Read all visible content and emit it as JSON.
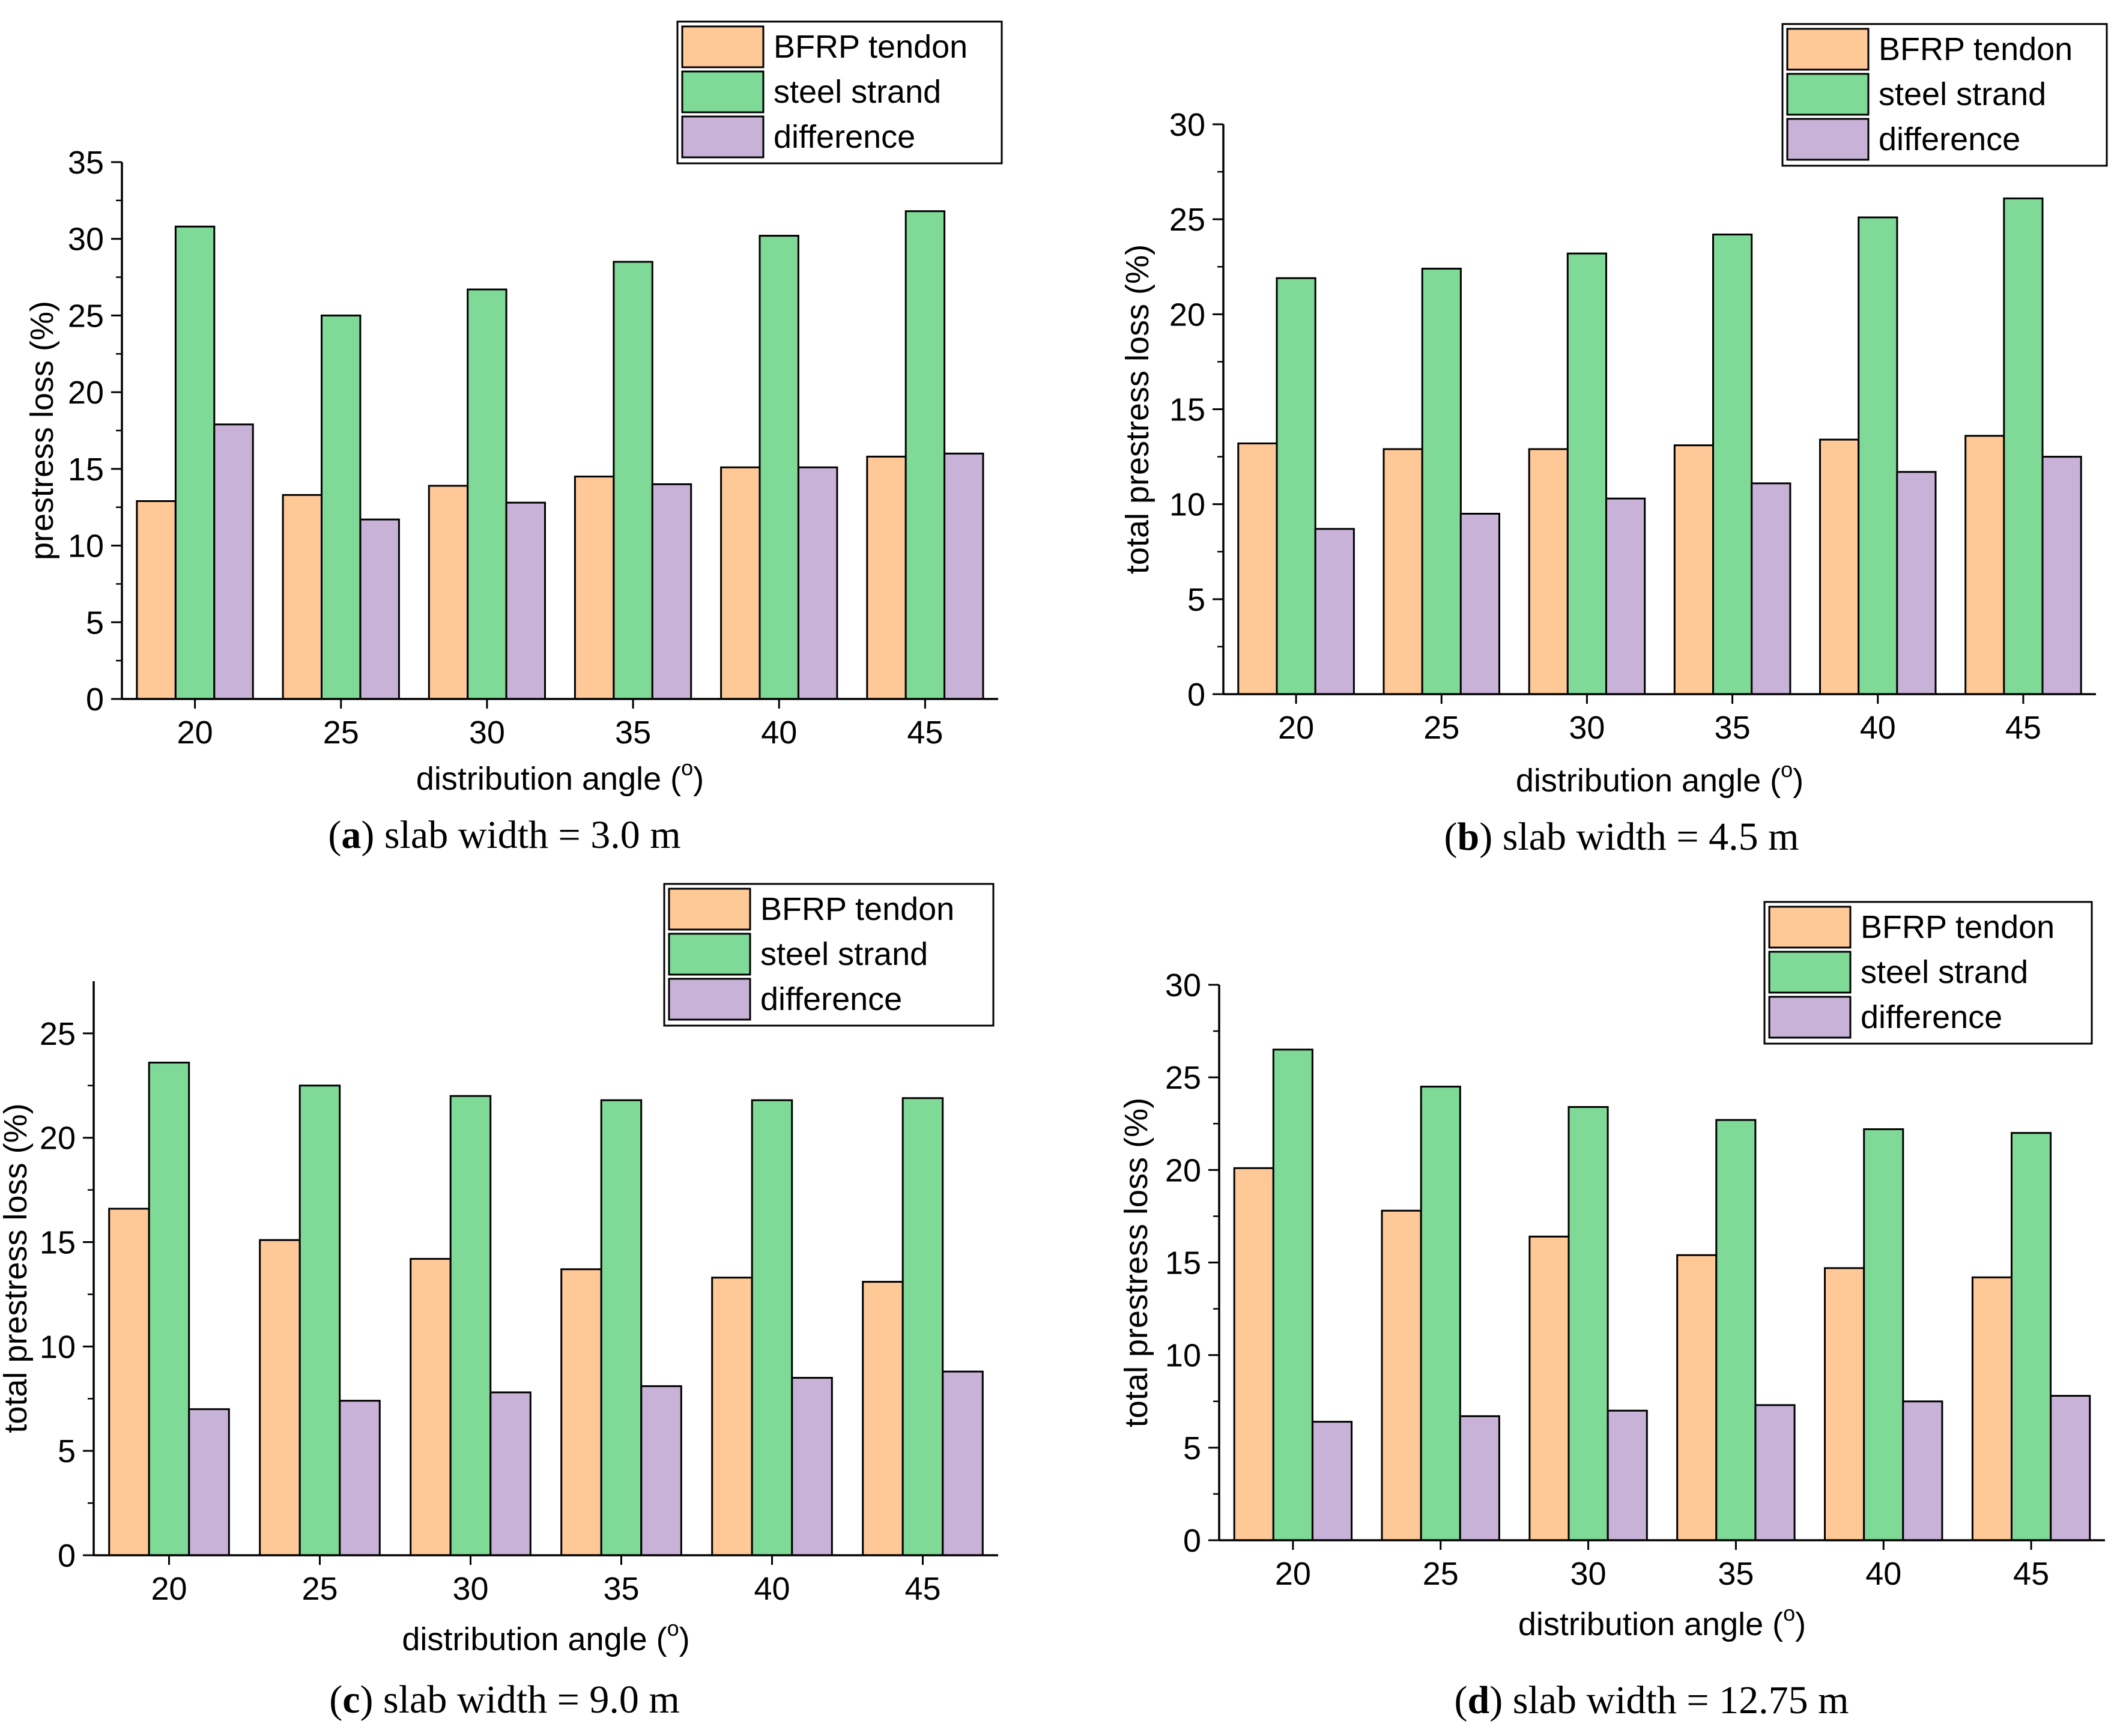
{
  "colors": {
    "bfrp": "#FEC897",
    "steel": "#7FD997",
    "difference": "#C8B2D8",
    "axis": "#000000"
  },
  "chart_data": [
    {
      "type": "bar",
      "panel": "a",
      "caption_label": "a",
      "caption_text": " slab width = 3.0 m",
      "categories": [
        "20",
        "25",
        "30",
        "35",
        "40",
        "45"
      ],
      "series": [
        {
          "name": "BFRP tendon",
          "values": [
            12.9,
            13.3,
            13.9,
            14.5,
            15.1,
            15.8
          ]
        },
        {
          "name": "steel strand",
          "values": [
            30.8,
            25.0,
            26.7,
            28.5,
            30.2,
            31.8
          ]
        },
        {
          "name": "difference",
          "values": [
            17.9,
            11.7,
            12.8,
            14.0,
            15.1,
            16.0
          ]
        }
      ],
      "xlabel_main": "distribution angle (",
      "xlabel_sup": "o",
      "xlabel_end": ")",
      "ylabel": "prestress loss (%)",
      "ylim": [
        0,
        35
      ],
      "yticks": [
        "0",
        "5",
        "10",
        "15",
        "20",
        "25",
        "30",
        "35"
      ],
      "legend": "top-right"
    },
    {
      "type": "bar",
      "panel": "b",
      "caption_label": "b",
      "caption_text": " slab width = 4.5 m",
      "categories": [
        "20",
        "25",
        "30",
        "35",
        "40",
        "45"
      ],
      "series": [
        {
          "name": "BFRP tendon",
          "values": [
            13.2,
            12.9,
            12.9,
            13.1,
            13.4,
            13.6
          ]
        },
        {
          "name": "steel strand",
          "values": [
            21.9,
            22.4,
            23.2,
            24.2,
            25.1,
            26.1
          ]
        },
        {
          "name": "difference",
          "values": [
            8.7,
            9.5,
            10.3,
            11.1,
            11.7,
            12.5
          ]
        }
      ],
      "xlabel_main": "distribution angle (",
      "xlabel_sup": "o",
      "xlabel_end": ")",
      "ylabel": "total prestress loss (%)",
      "ylim": [
        0,
        30
      ],
      "yticks": [
        "0",
        "5",
        "10",
        "15",
        "20",
        "25",
        "30"
      ],
      "legend": "top-right"
    },
    {
      "type": "bar",
      "panel": "c",
      "caption_label": "c",
      "caption_text": " slab width = 9.0 m",
      "categories": [
        "20",
        "25",
        "30",
        "35",
        "40",
        "45"
      ],
      "series": [
        {
          "name": "BFRP tendon",
          "values": [
            16.6,
            15.1,
            14.2,
            13.7,
            13.3,
            13.1
          ]
        },
        {
          "name": "steel strand",
          "values": [
            23.6,
            22.5,
            22.0,
            21.8,
            21.8,
            21.9
          ]
        },
        {
          "name": "difference",
          "values": [
            7.0,
            7.4,
            7.8,
            8.1,
            8.5,
            8.8
          ]
        }
      ],
      "xlabel_main": "distribution angle (",
      "xlabel_sup": "o",
      "xlabel_end": ")",
      "ylabel": "total prestress loss (%)",
      "ylim": [
        0,
        27.5
      ],
      "yticks": [
        "0",
        "5",
        "10",
        "15",
        "20",
        "25"
      ],
      "legend": "top-right"
    },
    {
      "type": "bar",
      "panel": "d",
      "caption_label": "d",
      "caption_text": " slab width = 12.75 m",
      "categories": [
        "20",
        "25",
        "30",
        "35",
        "40",
        "45"
      ],
      "series": [
        {
          "name": "BFRP tendon",
          "values": [
            20.1,
            17.8,
            16.4,
            15.4,
            14.7,
            14.2
          ]
        },
        {
          "name": "steel strand",
          "values": [
            26.5,
            24.5,
            23.4,
            22.7,
            22.2,
            22.0
          ]
        },
        {
          "name": "difference",
          "values": [
            6.4,
            6.7,
            7.0,
            7.3,
            7.5,
            7.8
          ]
        }
      ],
      "xlabel_main": "distribution angle (",
      "xlabel_sup": "o",
      "xlabel_end": ")",
      "ylabel": "total prestress loss (%)",
      "ylim": [
        0,
        30
      ],
      "yticks": [
        "0",
        "5",
        "10",
        "15",
        "20",
        "25",
        "30"
      ],
      "legend": "top-right"
    }
  ]
}
